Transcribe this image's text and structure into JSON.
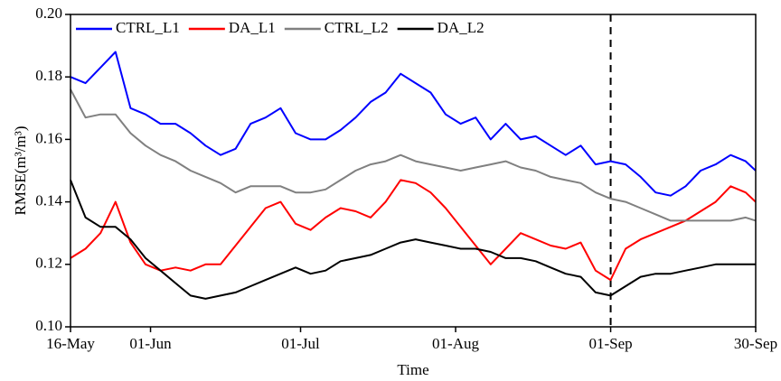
{
  "chart_data": {
    "type": "line",
    "x_label": "Time",
    "y_label": "RMSE(m³/m³)",
    "x": [
      "16-May",
      "19-May",
      "22-May",
      "25-May",
      "28-May",
      "31-May",
      "03-Jun",
      "06-Jun",
      "09-Jun",
      "12-Jun",
      "15-Jun",
      "18-Jun",
      "21-Jun",
      "24-Jun",
      "27-Jun",
      "30-Jun",
      "03-Jul",
      "06-Jul",
      "09-Jul",
      "12-Jul",
      "15-Jul",
      "18-Jul",
      "21-Jul",
      "24-Jul",
      "27-Jul",
      "30-Jul",
      "02-Aug",
      "05-Aug",
      "08-Aug",
      "11-Aug",
      "14-Aug",
      "17-Aug",
      "20-Aug",
      "23-Aug",
      "26-Aug",
      "29-Aug",
      "01-Sep",
      "04-Sep",
      "07-Sep",
      "10-Sep",
      "13-Sep",
      "16-Sep",
      "19-Sep",
      "22-Sep",
      "25-Sep",
      "28-Sep",
      "30-Sep"
    ],
    "series": [
      {
        "name": "CTRL_L1",
        "color": "#0000ff",
        "values": [
          0.18,
          0.178,
          0.183,
          0.188,
          0.17,
          0.168,
          0.165,
          0.165,
          0.162,
          0.158,
          0.155,
          0.157,
          0.165,
          0.167,
          0.17,
          0.162,
          0.16,
          0.16,
          0.163,
          0.167,
          0.172,
          0.175,
          0.181,
          0.178,
          0.175,
          0.168,
          0.165,
          0.167,
          0.16,
          0.165,
          0.16,
          0.161,
          0.158,
          0.155,
          0.158,
          0.152,
          0.153,
          0.152,
          0.148,
          0.143,
          0.142,
          0.145,
          0.15,
          0.152,
          0.155,
          0.153,
          0.15
        ]
      },
      {
        "name": "DA_L1",
        "color": "#ff0000",
        "values": [
          0.122,
          0.125,
          0.13,
          0.14,
          0.127,
          0.12,
          0.118,
          0.119,
          0.118,
          0.12,
          0.12,
          0.126,
          0.132,
          0.138,
          0.14,
          0.133,
          0.131,
          0.135,
          0.138,
          0.137,
          0.135,
          0.14,
          0.147,
          0.146,
          0.143,
          0.138,
          0.132,
          0.126,
          0.12,
          0.125,
          0.13,
          0.128,
          0.126,
          0.125,
          0.127,
          0.118,
          0.115,
          0.125,
          0.128,
          0.13,
          0.132,
          0.134,
          0.137,
          0.14,
          0.145,
          0.143,
          0.14
        ]
      },
      {
        "name": "CTRL_L2",
        "color": "#808080",
        "values": [
          0.176,
          0.167,
          0.168,
          0.168,
          0.162,
          0.158,
          0.155,
          0.153,
          0.15,
          0.148,
          0.146,
          0.143,
          0.145,
          0.145,
          0.145,
          0.143,
          0.143,
          0.144,
          0.147,
          0.15,
          0.152,
          0.153,
          0.155,
          0.153,
          0.152,
          0.151,
          0.15,
          0.151,
          0.152,
          0.153,
          0.151,
          0.15,
          0.148,
          0.147,
          0.146,
          0.143,
          0.141,
          0.14,
          0.138,
          0.136,
          0.134,
          0.134,
          0.134,
          0.134,
          0.134,
          0.135,
          0.134
        ]
      },
      {
        "name": "DA_L2",
        "color": "#000000",
        "values": [
          0.147,
          0.135,
          0.132,
          0.132,
          0.128,
          0.122,
          0.118,
          0.114,
          0.11,
          0.109,
          0.11,
          0.111,
          0.113,
          0.115,
          0.117,
          0.119,
          0.117,
          0.118,
          0.121,
          0.122,
          0.123,
          0.125,
          0.127,
          0.128,
          0.127,
          0.126,
          0.125,
          0.125,
          0.124,
          0.122,
          0.122,
          0.121,
          0.119,
          0.117,
          0.116,
          0.111,
          0.11,
          0.113,
          0.116,
          0.117,
          0.117,
          0.118,
          0.119,
          0.12,
          0.12,
          0.12,
          0.12
        ]
      }
    ],
    "xlim": [
      "16-May",
      "30-Sep"
    ],
    "xticks": [
      "16-May",
      "01-Jun",
      "01-Jul",
      "01-Aug",
      "01-Sep",
      "30-Sep"
    ],
    "ylim": [
      0.1,
      0.2
    ],
    "yticks": [
      {
        "value": 0.1,
        "label": "0.10"
      },
      {
        "value": 0.12,
        "label": "0.12"
      },
      {
        "value": 0.14,
        "label": "0.14"
      },
      {
        "value": 0.16,
        "label": "0.16"
      },
      {
        "value": 0.18,
        "label": "0.18"
      },
      {
        "value": 0.2,
        "label": "0.20"
      }
    ],
    "vline": "01-Sep",
    "legend": "upper left"
  }
}
